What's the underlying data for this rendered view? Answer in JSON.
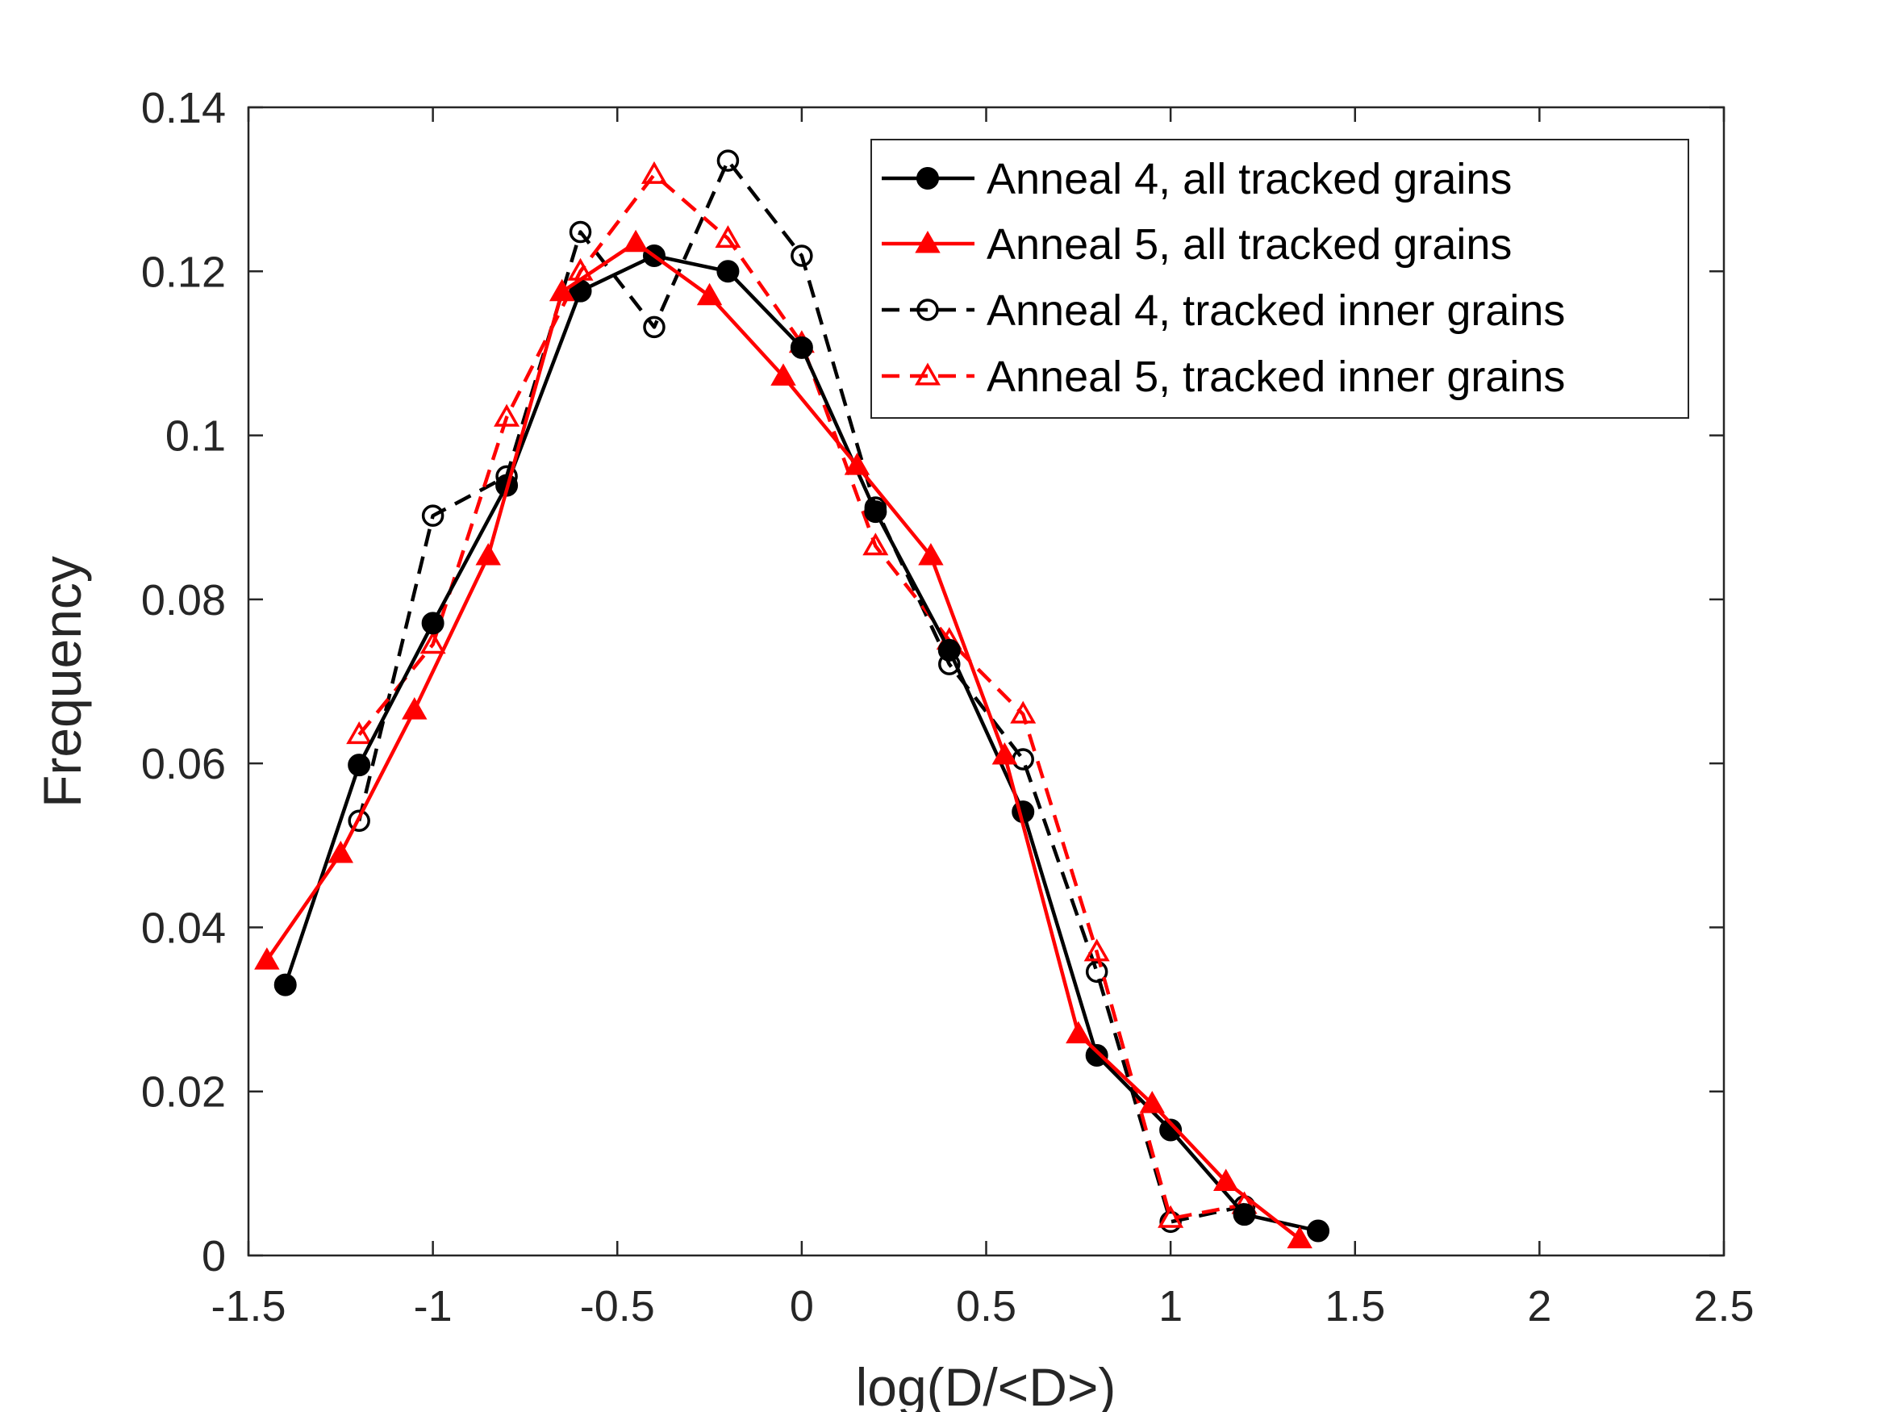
{
  "chart_data": {
    "type": "line",
    "title": "",
    "xlabel": "log(D/<D>)",
    "ylabel": "Frequency",
    "xlim": [
      -1.5,
      2.5
    ],
    "ylim": [
      0,
      0.14
    ],
    "xticks": [
      -1.5,
      -1,
      -0.5,
      0,
      0.5,
      1,
      1.5,
      2,
      2.5
    ],
    "xtick_labels": [
      "-1.5",
      "-1",
      "-0.5",
      "0",
      "0.5",
      "1",
      "1.5",
      "2",
      "2.5"
    ],
    "yticks": [
      0,
      0.02,
      0.04,
      0.06,
      0.08,
      0.1,
      0.12,
      0.14
    ],
    "ytick_labels": [
      "0",
      "0.02",
      "0.04",
      "0.06",
      "0.08",
      "0.1",
      "0.12",
      "0.14"
    ],
    "grid": false,
    "legend_position": "top-right",
    "series": [
      {
        "name": "Anneal 4, all tracked grains",
        "color": "#000000",
        "line": "solid",
        "marker": "filled-circle",
        "x": [
          -1.4,
          -1.2,
          -1.0,
          -0.8,
          -0.6,
          -0.4,
          -0.2,
          0.0,
          0.2,
          0.4,
          0.6,
          0.8,
          1.0,
          1.2,
          1.4
        ],
        "y": [
          0.033,
          0.0598,
          0.0771,
          0.0939,
          0.1176,
          0.1219,
          0.12,
          0.1107,
          0.0907,
          0.0738,
          0.0541,
          0.0244,
          0.0153,
          0.005,
          0.003
        ]
      },
      {
        "name": "Anneal 5, all tracked grains",
        "color": "#ff0000",
        "line": "solid",
        "marker": "filled-triangle",
        "x": [
          -1.45,
          -1.25,
          -1.05,
          -0.85,
          -0.65,
          -0.45,
          -0.25,
          -0.05,
          0.15,
          0.35,
          0.55,
          0.75,
          0.95,
          1.15,
          1.35
        ],
        "y": [
          0.036,
          0.049,
          0.0665,
          0.0853,
          0.1175,
          0.1235,
          0.117,
          0.1072,
          0.0963,
          0.0853,
          0.061,
          0.027,
          0.0185,
          0.009,
          0.002
        ]
      },
      {
        "name": "Anneal 4, tracked inner grains",
        "color": "#000000",
        "line": "dashed",
        "marker": "open-circle",
        "x": [
          -1.2,
          -1.0,
          -0.8,
          -0.6,
          -0.4,
          -0.2,
          0.0,
          0.2,
          0.4,
          0.6,
          0.8,
          1.0,
          1.2
        ],
        "y": [
          0.053,
          0.0902,
          0.095,
          0.1248,
          0.1132,
          0.1335,
          0.1219,
          0.0912,
          0.0721,
          0.0605,
          0.0346,
          0.0041,
          0.006
        ]
      },
      {
        "name": "Anneal 5, tracked inner grains",
        "color": "#ff0000",
        "line": "dashed",
        "marker": "open-triangle",
        "x": [
          -1.2,
          -1.0,
          -0.8,
          -0.6,
          -0.4,
          -0.2,
          0.0,
          0.2,
          0.4,
          0.6,
          0.8,
          1.0,
          1.2
        ],
        "y": [
          0.0635,
          0.0745,
          0.1022,
          0.12,
          0.1318,
          0.124,
          0.1112,
          0.0865,
          0.075,
          0.066,
          0.037,
          0.0045,
          0.0062
        ]
      }
    ]
  }
}
